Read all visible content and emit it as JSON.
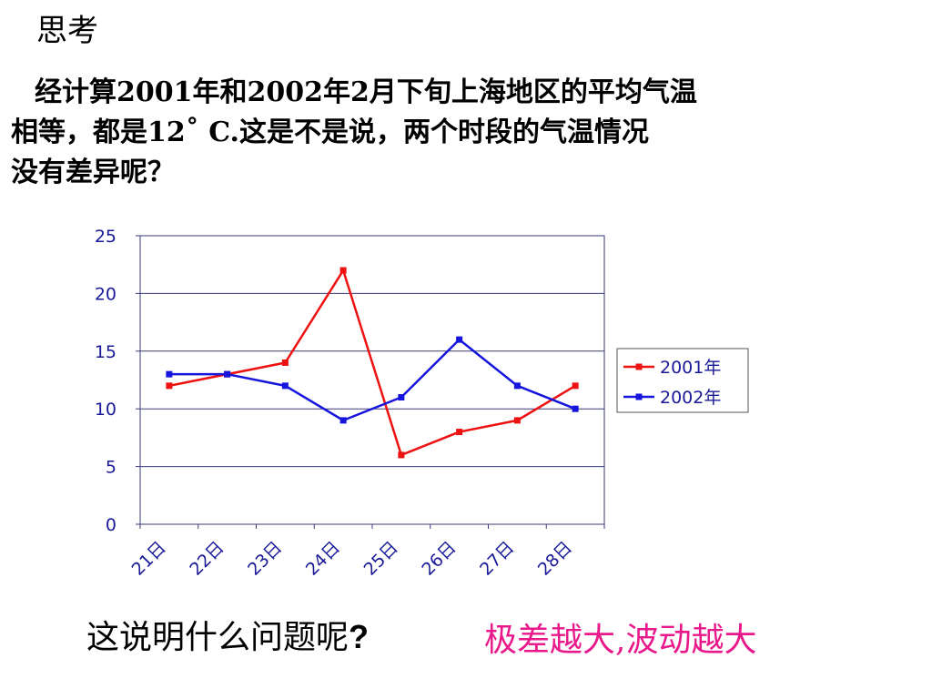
{
  "heading": "思考",
  "question": {
    "line1": "经计算2001年和2002年2月下旬上海地区的平均气温",
    "line2": "相等，都是12˚ C.这是不是说，两个时段的气温情况",
    "line3": "没有差异呢？"
  },
  "bottom": {
    "question_text": "这说明什么问题呢",
    "question_mark": "?",
    "answer": "极差越大,波动越大",
    "answer_color": "#e8198b"
  },
  "chart_data": {
    "type": "line",
    "categories": [
      "21日",
      "22日",
      "23日",
      "24日",
      "25日",
      "26日",
      "27日",
      "28日"
    ],
    "series": [
      {
        "name": "2001年",
        "color": "#ee1111",
        "values": [
          12,
          13,
          14,
          22,
          6,
          8,
          9,
          12
        ]
      },
      {
        "name": "2002年",
        "color": "#1515dd",
        "values": [
          13,
          13,
          12,
          9,
          11,
          16,
          12,
          10
        ]
      }
    ],
    "yticks": [
      0,
      5,
      10,
      15,
      20,
      25
    ],
    "ylim": [
      0,
      25
    ],
    "grid": "horizontal",
    "legend_position": "right",
    "tick_label_color": "#1a1a99"
  }
}
